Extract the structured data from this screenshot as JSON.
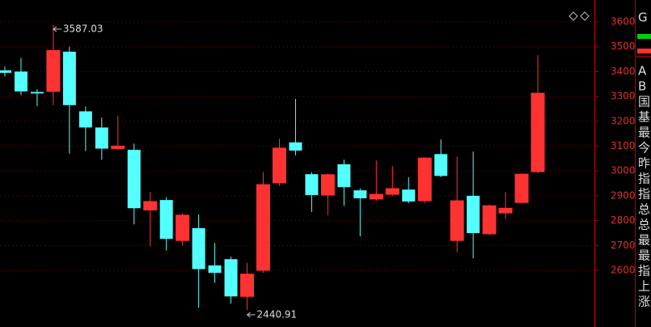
{
  "chart_data": {
    "type": "candlestick",
    "up_color": "#ff3232",
    "down_color": "#54ffff",
    "open": [
      3405,
      3400,
      3318,
      3320,
      3480,
      3240,
      3175,
      3090,
      3085,
      2843,
      2883,
      2720,
      2770,
      2620,
      2645,
      2495,
      2600,
      2952,
      3115,
      2987,
      2903,
      3027,
      2922,
      2887,
      2906,
      2925,
      2880,
      3068,
      2720,
      2900,
      2747,
      2831,
      2873,
      2997
    ],
    "high": [
      3420,
      3455,
      3330,
      3587.03,
      3500,
      3260,
      3215,
      3222,
      3110,
      2915,
      2895,
      2830,
      2825,
      2710,
      2655,
      2630,
      2995,
      3130,
      3290,
      2995,
      2990,
      3045,
      2930,
      3042,
      3020,
      2975,
      3055,
      3127,
      3058,
      3078,
      2865,
      2915,
      2990,
      3466
    ],
    "low": [
      3380,
      3305,
      3260,
      3265,
      3070,
      3080,
      3045,
      3085,
      2785,
      2697,
      2680,
      2700,
      2450,
      2550,
      2466,
      2440.91,
      2590,
      2940,
      3062,
      2835,
      2822,
      2860,
      2737,
      2880,
      2900,
      2870,
      2870,
      2975,
      2673,
      2648,
      2740,
      2808,
      2870,
      2990
    ],
    "close": [
      3395,
      3320,
      3312,
      3485,
      3265,
      3175,
      3090,
      3100,
      2850,
      2877,
      2727,
      2822,
      2605,
      2590,
      2495,
      2585,
      2945,
      3092,
      3082,
      2903,
      2985,
      2935,
      2890,
      2906,
      2929,
      2877,
      3052,
      2980,
      2880,
      2750,
      2860,
      2850,
      2987,
      3313
    ],
    "annotations": [
      3587.03,
      2440.91
    ],
    "ylim": [
      2372,
      3688
    ],
    "yticks": [
      2600,
      2700,
      2800,
      2900,
      3000,
      3100,
      3200,
      3300,
      3400,
      3500,
      3600
    ],
    "grid": true
  },
  "side_panel": {
    "labels": [
      "G",
      "A",
      "B",
      "国",
      "基",
      "最",
      "今",
      "昨",
      "指",
      "指",
      "总",
      "总",
      "最",
      "最",
      "指",
      "上",
      "涨"
    ]
  }
}
